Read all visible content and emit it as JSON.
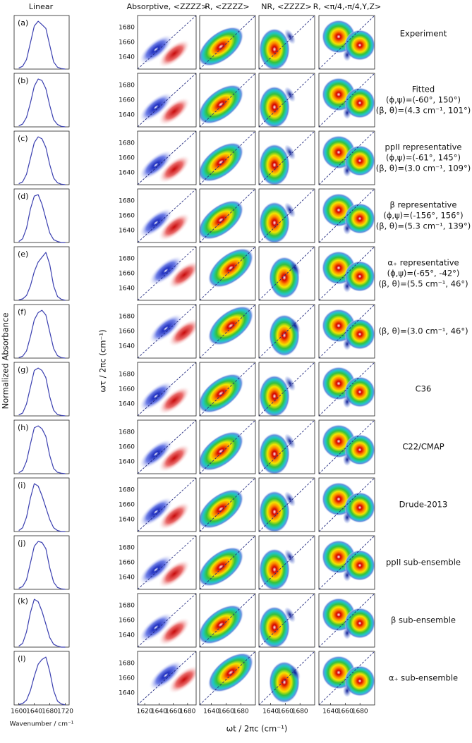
{
  "figure": {
    "column_headers": [
      "Linear",
      "Absorptive, <ZZZZ>",
      "R, <ZZZZ>",
      "NR, <ZZZZ>",
      "R, <π/4,-π/4,Y,Z>"
    ],
    "row_tags": [
      "(a)",
      "(b)",
      "(c)",
      "(d)",
      "(e)",
      "(f)",
      "(g)",
      "(h)",
      "(i)",
      "(j)",
      "(k)",
      "(l)"
    ],
    "row_labels": [
      [
        "Experiment"
      ],
      [
        "Fitted",
        "(ϕ,ψ)=(-60°, 150°)",
        "(β, θ)=(4.3 cm⁻¹, 101°)"
      ],
      [
        "ppII representative",
        "(ϕ,ψ)=(-61°, 145°)",
        "(β, θ)=(3.0 cm⁻¹, 109°)"
      ],
      [
        "β representative",
        "(ϕ,ψ)=(-156°, 156°)",
        "(β, θ)=(5.3 cm⁻¹, 139°)"
      ],
      [
        "α₊ representative",
        "(ϕ,ψ)=(-65°, -42°)",
        "(β, θ)=(5.5 cm⁻¹, 46°)"
      ],
      [
        "(β, θ)=(3.0 cm⁻¹, 46°)"
      ],
      [
        "C36"
      ],
      [
        "C22/CMAP"
      ],
      [
        "Drude-2013"
      ],
      [
        "ppII sub-ensemble"
      ],
      [
        "β sub-ensemble"
      ],
      [
        "α₊ sub-ensemble"
      ]
    ],
    "linear": {
      "y_label": "Normalized Absorbance",
      "x_label": "Wavenumber / cm⁻¹",
      "x": [
        1600,
        1610,
        1620,
        1630,
        1640,
        1650,
        1660,
        1670,
        1680,
        1690,
        1700,
        1710,
        1720
      ],
      "xlim": [
        1588,
        1730
      ],
      "ylim": [
        0,
        1.12
      ],
      "xticks": [
        1600,
        1640,
        1680,
        1720
      ],
      "color": "#3a3fb0",
      "spectra": [
        [
          0.02,
          0.06,
          0.2,
          0.55,
          0.9,
          1.0,
          0.93,
          0.85,
          0.5,
          0.15,
          0.04,
          0.01,
          0
        ],
        [
          0.02,
          0.06,
          0.2,
          0.5,
          0.85,
          1.0,
          0.97,
          0.8,
          0.45,
          0.15,
          0.05,
          0.01,
          0
        ],
        [
          0.02,
          0.06,
          0.22,
          0.55,
          0.88,
          1.0,
          0.96,
          0.78,
          0.42,
          0.14,
          0.04,
          0.01,
          0
        ],
        [
          0.02,
          0.08,
          0.3,
          0.7,
          0.97,
          1.0,
          0.8,
          0.5,
          0.2,
          0.06,
          0.02,
          0,
          0
        ],
        [
          0.01,
          0.03,
          0.1,
          0.3,
          0.6,
          0.8,
          0.9,
          1.0,
          0.75,
          0.3,
          0.08,
          0.02,
          0
        ],
        [
          0.01,
          0.04,
          0.15,
          0.45,
          0.8,
          0.95,
          1.0,
          0.9,
          0.55,
          0.2,
          0.05,
          0.01,
          0
        ],
        [
          0.02,
          0.06,
          0.25,
          0.6,
          0.95,
          1.0,
          0.95,
          0.8,
          0.4,
          0.12,
          0.03,
          0.01,
          0
        ],
        [
          0.02,
          0.07,
          0.26,
          0.62,
          0.96,
          1.0,
          0.94,
          0.78,
          0.38,
          0.11,
          0.03,
          0.01,
          0
        ],
        [
          0.02,
          0.08,
          0.3,
          0.7,
          1.0,
          0.95,
          0.75,
          0.5,
          0.25,
          0.08,
          0.02,
          0,
          0
        ],
        [
          0.02,
          0.06,
          0.2,
          0.55,
          0.9,
          1.0,
          0.98,
          0.85,
          0.45,
          0.15,
          0.04,
          0.01,
          0
        ],
        [
          0.02,
          0.08,
          0.32,
          0.72,
          1.0,
          0.95,
          0.75,
          0.48,
          0.2,
          0.06,
          0.02,
          0,
          0
        ],
        [
          0.01,
          0.03,
          0.1,
          0.3,
          0.6,
          0.85,
          0.95,
          1.0,
          0.7,
          0.3,
          0.08,
          0.02,
          0
        ]
      ]
    },
    "two_d": {
      "y_label": "ωτ / 2πc (cm⁻¹)",
      "x_label": "ωt / 2πc (cm⁻¹)",
      "ylim": [
        1624,
        1696
      ],
      "yticks": [
        1640,
        1660,
        1680
      ],
      "absorptive_xlim": [
        1610,
        1692
      ],
      "absorptive_xticks": [
        1620,
        1640,
        1660,
        1680
      ],
      "xlim": [
        1624,
        1700
      ],
      "xticks": [
        1640,
        1660,
        1680
      ]
    }
  }
}
